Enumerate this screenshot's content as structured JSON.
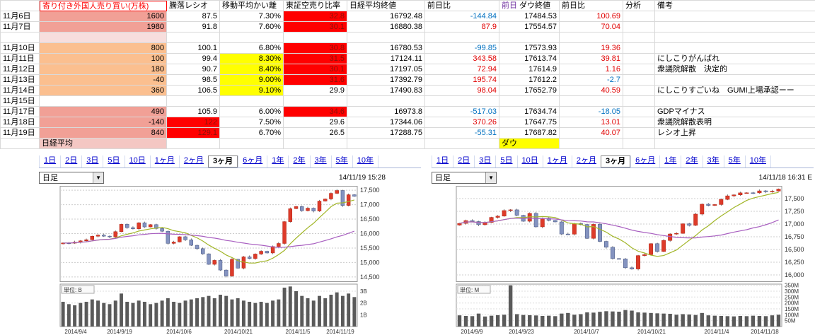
{
  "table": {
    "headers": {
      "date": "",
      "foreign": "寄り付き外国人売り買い(万株)",
      "ratio": "騰落レシオ",
      "dev": "移動平均かい離",
      "short": "東証空売り比率",
      "nikkei": "日経平均終値",
      "nkchg": "前日比",
      "dow_prefix": "前日",
      "dow": "ダウ終値",
      "dowchg": "前日比",
      "analysis": "分析",
      "note": "備考"
    },
    "colors": {
      "positive": "#e00000",
      "negative": "#0070c0",
      "on_red_text": "#8b1209",
      "salmon": "#f1a096",
      "orange": "#fbbf8f",
      "yellow": "#ffff00",
      "red": "#ff0000",
      "light_pink": "#f7dedd",
      "pink": "#f4c7c3"
    },
    "rows": [
      {
        "date": "11月6日",
        "foreign": "1600",
        "foreign_bg": "#f1a096",
        "ratio": "87.5",
        "dev": "7.30%",
        "short": "32.8",
        "short_bg": "#ff0000",
        "nikkei": "16792.48",
        "nkchg": "-144.84",
        "dow": "17484.53",
        "dowchg": "100.69",
        "analysis": "",
        "note": ""
      },
      {
        "date": "11月7日",
        "foreign": "1980",
        "foreign_bg": "#f1a096",
        "ratio": "91.8",
        "dev": "7.60%",
        "short": "30.1",
        "short_bg": "#ff0000",
        "nikkei": "16880.38",
        "nkchg": "87.9",
        "dow": "17554.57",
        "dowchg": "70.04",
        "analysis": "",
        "note": ""
      },
      {
        "date": "",
        "foreign": "",
        "foreign_bg": "#f7dedd",
        "ratio": "",
        "dev": "",
        "short": "",
        "nikkei": "",
        "nkchg": "",
        "dow": "",
        "dowchg": "",
        "analysis": "",
        "note": ""
      },
      {
        "date": "11月10日",
        "foreign": "800",
        "foreign_bg": "#fbbf8f",
        "ratio": "100.1",
        "dev": "6.80%",
        "short": "30.8",
        "short_bg": "#ff0000",
        "nikkei": "16780.53",
        "nkchg": "-99.85",
        "dow": "17573.93",
        "dowchg": "19.36",
        "analysis": "",
        "note": ""
      },
      {
        "date": "11月11日",
        "foreign": "100",
        "foreign_bg": "#fbbf8f",
        "ratio": "99.4",
        "dev": "8.30%",
        "dev_bg": "#ffff00",
        "short": "31.5",
        "short_bg": "#ff0000",
        "nikkei": "17124.11",
        "nkchg": "343.58",
        "dow": "17613.74",
        "dowchg": "39.81",
        "analysis": "",
        "note": "にしこりがんばれ"
      },
      {
        "date": "11月12日",
        "foreign": "180",
        "foreign_bg": "#fbbf8f",
        "ratio": "90.7",
        "dev": "8.40%",
        "dev_bg": "#ffff00",
        "short": "30.1",
        "short_bg": "#ff0000",
        "nikkei": "17197.05",
        "nkchg": "72.94",
        "dow": "17614.9",
        "dowchg": "1.16",
        "analysis": "",
        "note": "衆議院解散　決定的"
      },
      {
        "date": "11月13日",
        "foreign": "-40",
        "foreign_bg": "#fbbf8f",
        "ratio": "98.5",
        "dev": "9.00%",
        "dev_bg": "#ffff00",
        "short": "31.6",
        "short_bg": "#ff0000",
        "nikkei": "17392.79",
        "nkchg": "195.74",
        "dow": "17612.2",
        "dowchg": "-2.7",
        "analysis": "",
        "note": ""
      },
      {
        "date": "11月14日",
        "foreign": "360",
        "foreign_bg": "#fbbf8f",
        "ratio": "106.5",
        "dev": "9.10%",
        "dev_bg": "#ffff00",
        "short": "29.9",
        "nikkei": "17490.83",
        "nkchg": "98.04",
        "dow": "17652.79",
        "dowchg": "40.59",
        "analysis": "",
        "note": "にしこりすごいね　GUMI上場承認ーー"
      },
      {
        "date": "11月15日",
        "foreign": "",
        "ratio": "",
        "dev": "",
        "short": "",
        "nikkei": "",
        "nkchg": "",
        "dow": "",
        "dowchg": "",
        "analysis": "",
        "note": ""
      },
      {
        "date": "11月17日",
        "foreign": "490",
        "foreign_bg": "#f1a096",
        "ratio": "105.9",
        "dev": "6.00%",
        "short": "34.6",
        "short_bg": "#ff0000",
        "nikkei": "16973.8",
        "nkchg": "-517.03",
        "dow": "17634.74",
        "dowchg": "-18.05",
        "analysis": "",
        "note": "GDPマイナス"
      },
      {
        "date": "11月18日",
        "foreign": "-140",
        "foreign_bg": "#f1a096",
        "ratio": "122",
        "ratio_bg": "#ff0000",
        "dev": "7.50%",
        "short": "29.6",
        "nikkei": "17344.06",
        "nkchg": "370.26",
        "dow": "17647.75",
        "dowchg": "13.01",
        "analysis": "",
        "note": "衆議院解散表明"
      },
      {
        "date": "11月19日",
        "foreign": "840",
        "foreign_bg": "#f1a096",
        "ratio": "129.1",
        "ratio_bg": "#ff0000",
        "dev": "6.70%",
        "short": "26.5",
        "nikkei": "17288.75",
        "nkchg": "-55.31",
        "dow": "17687.82",
        "dowchg": "40.07",
        "analysis": "",
        "note": "レシオ上昇"
      },
      {
        "date": "",
        "foreign": "日経平均",
        "foreign_bg": "#f4c7c3",
        "foreign_left": true,
        "ratio": "",
        "dev": "",
        "short": "",
        "nikkei": "",
        "nkchg": "",
        "dow": "ダウ",
        "dow_bg": "#ffff00",
        "dow_left": true,
        "dowchg": "",
        "analysis": "",
        "note": ""
      }
    ]
  },
  "charts_ui": [
    {
      "tabs": [
        "1日",
        "2日",
        "3日",
        "5日",
        "10日",
        "1ヶ月",
        "2ヶ月",
        "3ヶ月",
        "6ヶ月",
        "1年",
        "2年",
        "3年",
        "5年",
        "10年"
      ],
      "active_tab": "3ヶ月",
      "chart_type": "日足",
      "timestamp": "14/11/19 15:28"
    },
    {
      "tabs": [
        "1日",
        "2日",
        "3日",
        "5日",
        "10日",
        "1ヶ月",
        "2ヶ月",
        "3ヶ月",
        "6ヶ月",
        "1年",
        "2年",
        "3年",
        "5年",
        "10年"
      ],
      "active_tab": "3ヶ月",
      "chart_type": "日足",
      "timestamp": "14/11/18 16:31 E"
    }
  ],
  "chart_data": [
    {
      "type": "candlestick",
      "name": "nikkei",
      "title": "日経平均 日足 3ヶ月",
      "ylim": [
        14350,
        17650
      ],
      "y_ticks": [
        {
          "v": 17500,
          "label": "17,500"
        },
        {
          "v": 17000,
          "label": "17,000"
        },
        {
          "v": 16500,
          "label": "16,500"
        },
        {
          "v": 16000,
          "label": "16,000"
        },
        {
          "v": 15500,
          "label": "15,500"
        },
        {
          "v": 15000,
          "label": "15,000"
        },
        {
          "v": 14500,
          "label": "14,500"
        }
      ],
      "x_tick_labels": [
        "2014/9/4",
        "2014/9/19",
        "2014/10/6",
        "2014/10/21",
        "2014/11/5",
        "2014/11/19"
      ],
      "closes": [
        15676,
        15668,
        15705,
        15749,
        15788,
        15909,
        15948,
        15911,
        15888,
        16067,
        16321,
        16205,
        16167,
        16374,
        16230,
        16310,
        16174,
        16082,
        15661,
        15709,
        15891,
        15783,
        15595,
        15478,
        15300,
        14936,
        15073,
        14738,
        14532,
        15111,
        14804,
        15195,
        15139,
        15292,
        15389,
        15329,
        15553,
        15658,
        16413,
        16862,
        16937,
        16792,
        16880,
        16780,
        17124,
        17197,
        17392,
        17490,
        16973,
        17344,
        17288
      ],
      "volumes": [
        2.1,
        1.9,
        1.8,
        2.0,
        2.1,
        2.3,
        2.2,
        2.0,
        1.9,
        2.2,
        2.8,
        2.1,
        2.0,
        2.2,
        2.1,
        1.9,
        2.0,
        2.2,
        2.4,
        2.1,
        2.0,
        2.2,
        2.3,
        2.4,
        2.5,
        2.6,
        2.4,
        2.7,
        2.6,
        2.3,
        2.4,
        2.2,
        2.1,
        2.0,
        2.1,
        2.0,
        2.2,
        2.3,
        3.3,
        3.4,
        3.0,
        2.6,
        2.4,
        2.2,
        2.6,
        2.4,
        2.7,
        2.9,
        2.6,
        2.8,
        2.5
      ],
      "vol_max": 3.6,
      "vol_ticks": [
        {
          "v": 3,
          "label": "3B"
        },
        {
          "v": 2,
          "label": "2B"
        },
        {
          "v": 1,
          "label": "1B"
        }
      ],
      "unit": "単位: B",
      "colors": {
        "up": "#dd3b2a",
        "down": "#8493c0",
        "ma_short": "#a2b629",
        "ma_long": "#a85fc0",
        "volume": "#5a5a5a"
      }
    },
    {
      "type": "candlestick",
      "name": "dow",
      "title": "ダウ 日足 3ヶ月",
      "ylim": [
        15875,
        17750
      ],
      "y_ticks": [
        {
          "v": 17500,
          "label": "17,500"
        },
        {
          "v": 17250,
          "label": "17,250"
        },
        {
          "v": 17000,
          "label": "17,000"
        },
        {
          "v": 16750,
          "label": "16,750"
        },
        {
          "v": 16500,
          "label": "16,500"
        },
        {
          "v": 16250,
          "label": "16,250"
        },
        {
          "v": 16000,
          "label": "16,000"
        }
      ],
      "x_tick_labels": [
        "2014/9/9",
        "2014/9/23",
        "2014/10/7",
        "2014/10/21",
        "2014/11/4",
        "2014/11/18"
      ],
      "closes": [
        17013,
        17068,
        17049,
        16987,
        17031,
        17131,
        17156,
        17265,
        17279,
        17172,
        17055,
        17210,
        16945,
        17113,
        17071,
        17042,
        16804,
        16801,
        17009,
        16991,
        16719,
        16994,
        16659,
        16544,
        16321,
        16315,
        16141,
        16117,
        16380,
        16399,
        16614,
        16461,
        16677,
        16805,
        16817,
        17005,
        16974,
        17195,
        17390,
        17366,
        17383,
        17484,
        17554,
        17573,
        17613,
        17614,
        17612,
        17652,
        17634,
        17647,
        17687
      ],
      "volumes": [
        95,
        90,
        88,
        110,
        85,
        92,
        96,
        100,
        350,
        105,
        98,
        96,
        94,
        90,
        92,
        88,
        110,
        115,
        100,
        105,
        120,
        118,
        125,
        130,
        128,
        126,
        140,
        135,
        120,
        118,
        115,
        112,
        110,
        108,
        100,
        105,
        102,
        98,
        115,
        95,
        92,
        90,
        88,
        86,
        90,
        88,
        92,
        90,
        88,
        95,
        100
      ],
      "vol_max": 360,
      "vol_ticks": [
        {
          "v": 350,
          "label": "350M"
        },
        {
          "v": 300,
          "label": "300M"
        },
        {
          "v": 250,
          "label": "250M"
        },
        {
          "v": 200,
          "label": "200M"
        },
        {
          "v": 150,
          "label": "150M"
        },
        {
          "v": 100,
          "label": "100M"
        },
        {
          "v": 50,
          "label": "50M"
        }
      ],
      "unit": "単位: M",
      "colors": {
        "up": "#dd3b2a",
        "down": "#8493c0",
        "ma_short": "#a2b629",
        "ma_long": "#a85fc0",
        "volume": "#5a5a5a"
      }
    }
  ]
}
